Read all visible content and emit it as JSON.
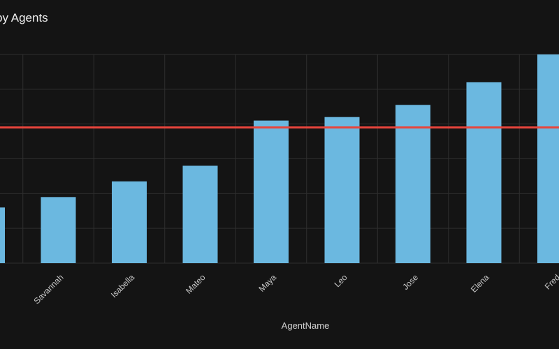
{
  "chart_data": {
    "type": "bar",
    "title": "by Agents",
    "xlabel": "AgentName",
    "ylabel": "",
    "categories": [
      "",
      "Savannah",
      "Isabella",
      "Mateo",
      "Maya",
      "Leo",
      "Jose",
      "Elena",
      "Fred"
    ],
    "values": [
      16,
      19,
      23.5,
      28,
      41,
      42,
      45.5,
      52,
      60
    ],
    "reference_line": 39,
    "ylim": [
      0,
      60
    ],
    "grid": true,
    "legend": "none",
    "colors": {
      "bar": "#6BB8E0",
      "reference_line": "#E8453C",
      "gridline": "#2E2E2E",
      "background": "#141414"
    }
  }
}
